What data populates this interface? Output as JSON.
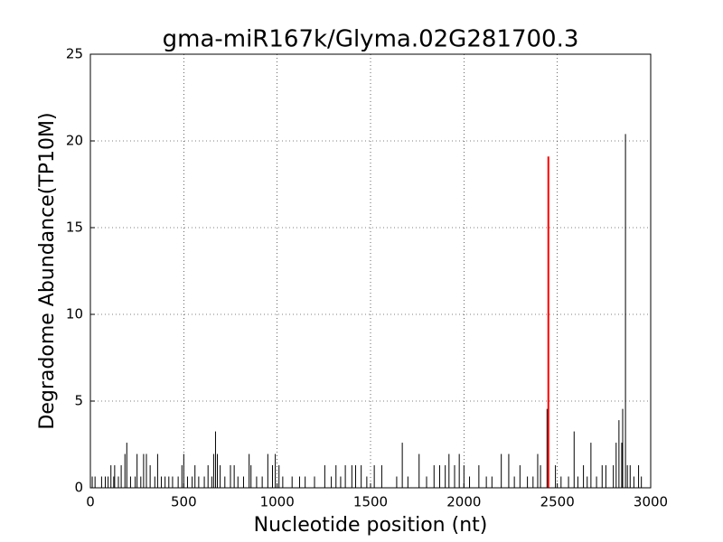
{
  "chart_data": {
    "type": "stem",
    "title": "gma-miR167k/Glyma.02G281700.3",
    "x_label": "Nucleotide position (nt)",
    "y_label": "Degradome Abundance(TP10M)",
    "xlim": [
      0,
      3000
    ],
    "xticks": [
      0,
      500,
      1000,
      1500,
      2000,
      2500,
      3000
    ],
    "ylim": [
      0,
      25
    ],
    "yticks": [
      0,
      5,
      10,
      15,
      20,
      25
    ],
    "grid": true,
    "series": [
      {
        "color": "#000000",
        "x": [
          10,
          25,
          60,
          80,
          95,
          110,
          125,
          130,
          150,
          165,
          185,
          195,
          215,
          240,
          250,
          270,
          285,
          300,
          320,
          345,
          360,
          380,
          400,
          420,
          440,
          470,
          490,
          500,
          520,
          545,
          560,
          580,
          610,
          630,
          650,
          660,
          670,
          680,
          695,
          720,
          750,
          770,
          790,
          820,
          850,
          860,
          890,
          920,
          950,
          975,
          990,
          1010,
          1030,
          1080,
          1120,
          1150,
          1200,
          1255,
          1290,
          1315,
          1340,
          1365,
          1400,
          1420,
          1450,
          1480,
          1520,
          1560,
          1640,
          1670,
          1700,
          1760,
          1800,
          1840,
          1870,
          1900,
          1920,
          1950,
          1975,
          2000,
          2030,
          2080,
          2120,
          2150,
          2200,
          2240,
          2270,
          2300,
          2340,
          2370,
          2395,
          2410,
          2445,
          2490,
          2520,
          2560,
          2590,
          2610,
          2640,
          2660,
          2680,
          2710,
          2740,
          2760,
          2800,
          2815,
          2830,
          2845,
          2850,
          2865,
          2875,
          2890,
          2910,
          2935,
          2950
        ],
        "values": [
          0.65,
          0.65,
          0.65,
          0.65,
          0.65,
          1.3,
          0.65,
          1.3,
          0.65,
          1.3,
          1.95,
          2.6,
          0.65,
          0.65,
          1.95,
          0.65,
          1.95,
          1.95,
          1.3,
          0.65,
          1.95,
          0.65,
          0.65,
          0.65,
          0.65,
          0.65,
          1.3,
          1.95,
          0.65,
          0.65,
          1.3,
          0.65,
          0.65,
          1.3,
          0.65,
          1.95,
          3.25,
          1.95,
          1.3,
          0.65,
          1.3,
          1.3,
          0.65,
          0.65,
          1.95,
          1.3,
          0.65,
          0.65,
          1.95,
          1.3,
          1.95,
          1.3,
          0.65,
          0.65,
          0.65,
          0.65,
          0.65,
          1.3,
          0.65,
          1.3,
          0.65,
          1.3,
          1.3,
          1.3,
          1.3,
          0.65,
          1.3,
          1.3,
          0.65,
          2.6,
          0.65,
          1.95,
          0.65,
          1.3,
          1.3,
          1.3,
          1.95,
          1.3,
          1.95,
          1.3,
          0.65,
          1.3,
          0.65,
          0.65,
          1.95,
          1.95,
          0.65,
          1.3,
          0.65,
          0.65,
          1.95,
          1.3,
          4.55,
          1.3,
          0.65,
          0.65,
          3.25,
          0.65,
          1.3,
          0.65,
          2.6,
          0.65,
          1.3,
          1.3,
          1.3,
          2.6,
          3.9,
          2.6,
          4.55,
          20.4,
          1.3,
          1.3,
          0.65,
          1.3,
          0.65
        ]
      },
      {
        "color": "#ff0000",
        "x": [
          2452
        ],
        "values": [
          19.1
        ]
      }
    ]
  }
}
